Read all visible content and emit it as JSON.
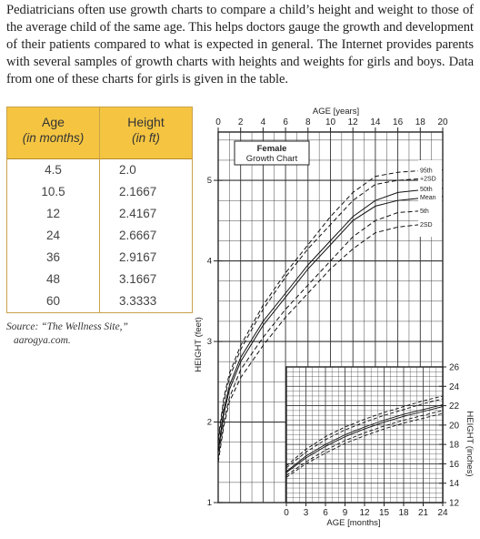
{
  "intro_text": "Pediatricians often use growth charts to compare a child’s height and weight to those of the average child of the same age. This helps doctors gauge the growth and development of their patients compared to what is expected in general. The Internet provides parents with several samples of growth charts with heights and weights for girls and boys. Data from one of these charts for girls is given in the table.",
  "table": {
    "col1_header": "Age",
    "col1_sub": "(in months)",
    "col2_header": "Height",
    "col2_sub": "(in ft)",
    "rows": [
      {
        "age": "4.5",
        "height": "2.0"
      },
      {
        "age": "10.5",
        "height": "2.1667"
      },
      {
        "age": "12",
        "height": "2.4167"
      },
      {
        "age": "24",
        "height": "2.6667"
      },
      {
        "age": "36",
        "height": "2.9167"
      },
      {
        "age": "48",
        "height": "3.1667"
      },
      {
        "age": "60",
        "height": "3.3333"
      }
    ]
  },
  "source_line1": "Source: “The Wellness Site,”",
  "source_line2": "aarogya.com.",
  "chart_data": {
    "type": "line",
    "title": "Female Growth Chart",
    "x_top_label": "AGE [years]",
    "x_top_ticks": [
      "0",
      "2",
      "4",
      "6",
      "8",
      "10",
      "12",
      "14",
      "16",
      "18",
      "20"
    ],
    "x_top_range": [
      0,
      20
    ],
    "y_left_label": "HEIGHT (feet)",
    "y_left_ticks": [
      "1",
      "2",
      "3",
      "4",
      "5"
    ],
    "y_left_range": [
      1,
      5.6
    ],
    "percentile_labels": [
      "95th",
      "+2SD",
      "50th",
      "Mean",
      "5th",
      "2SD"
    ],
    "series": [
      {
        "name": "95th",
        "dashed": true,
        "x": [
          0,
          0.5,
          1,
          2,
          4,
          6,
          8,
          10,
          12,
          14,
          16,
          18,
          20
        ],
        "y": [
          1.8,
          2.3,
          2.6,
          2.95,
          3.45,
          3.85,
          4.2,
          4.55,
          4.85,
          5.05,
          5.1,
          5.12,
          5.13
        ]
      },
      {
        "name": "+2SD",
        "dashed": true,
        "x": [
          0,
          0.5,
          1,
          2,
          4,
          6,
          8,
          10,
          12,
          14,
          16,
          18,
          20
        ],
        "y": [
          1.75,
          2.25,
          2.55,
          2.9,
          3.4,
          3.8,
          4.15,
          4.45,
          4.75,
          4.95,
          5.0,
          5.02,
          5.03
        ]
      },
      {
        "name": "50th",
        "dashed": false,
        "x": [
          0,
          0.5,
          1,
          2,
          4,
          6,
          8,
          10,
          12,
          14,
          16,
          18,
          20
        ],
        "y": [
          1.65,
          2.15,
          2.45,
          2.8,
          3.25,
          3.6,
          3.95,
          4.25,
          4.55,
          4.75,
          4.85,
          4.88,
          4.9
        ]
      },
      {
        "name": "Mean",
        "dashed": false,
        "x": [
          0,
          0.5,
          1,
          2,
          4,
          6,
          8,
          10,
          12,
          14,
          16,
          18,
          20
        ],
        "y": [
          1.62,
          2.1,
          2.4,
          2.75,
          3.2,
          3.55,
          3.9,
          4.2,
          4.5,
          4.68,
          4.75,
          4.78,
          4.8
        ]
      },
      {
        "name": "5th",
        "dashed": true,
        "x": [
          0,
          0.5,
          1,
          2,
          4,
          6,
          8,
          10,
          12,
          14,
          16,
          18,
          20
        ],
        "y": [
          1.55,
          2.0,
          2.3,
          2.65,
          3.05,
          3.4,
          3.7,
          4.0,
          4.3,
          4.5,
          4.6,
          4.62,
          4.63
        ]
      },
      {
        "name": "2SD",
        "dashed": true,
        "x": [
          0,
          0.5,
          1,
          2,
          4,
          6,
          8,
          10,
          12,
          14,
          16,
          18,
          20
        ],
        "y": [
          1.5,
          1.95,
          2.25,
          2.55,
          2.95,
          3.3,
          3.6,
          3.9,
          4.15,
          4.35,
          4.42,
          4.45,
          4.46
        ]
      }
    ],
    "inset": {
      "x_label": "AGE [months]",
      "x_ticks": [
        "0",
        "3",
        "6",
        "9",
        "12",
        "15",
        "18",
        "21",
        "24"
      ],
      "x_range": [
        0,
        24
      ],
      "y_label": "HEIGHT (inches)",
      "y_ticks": [
        "12",
        "14",
        "16",
        "18",
        "20",
        "22",
        "24",
        "26"
      ],
      "y_range": [
        12,
        26
      ],
      "series": [
        {
          "name": "95th",
          "dashed": true,
          "x": [
            0,
            3,
            6,
            9,
            12,
            15,
            18,
            21,
            24
          ],
          "y": [
            15.8,
            17.5,
            18.8,
            19.8,
            20.6,
            21.3,
            21.9,
            22.5,
            23.0
          ]
        },
        {
          "name": "+2SD",
          "dashed": true,
          "x": [
            0,
            3,
            6,
            9,
            12,
            15,
            18,
            21,
            24
          ],
          "y": [
            15.6,
            17.2,
            18.5,
            19.5,
            20.3,
            21.0,
            21.6,
            22.2,
            22.7
          ]
        },
        {
          "name": "50th",
          "dashed": false,
          "x": [
            0,
            3,
            6,
            9,
            12,
            15,
            18,
            21,
            24
          ],
          "y": [
            15.2,
            16.8,
            18.0,
            19.0,
            19.8,
            20.5,
            21.1,
            21.6,
            22.1
          ]
        },
        {
          "name": "Mean",
          "dashed": false,
          "x": [
            0,
            3,
            6,
            9,
            12,
            15,
            18,
            21,
            24
          ],
          "y": [
            15.1,
            16.6,
            17.8,
            18.8,
            19.6,
            20.3,
            20.9,
            21.4,
            21.9
          ]
        },
        {
          "name": "5th",
          "dashed": true,
          "x": [
            0,
            3,
            6,
            9,
            12,
            15,
            18,
            21,
            24
          ],
          "y": [
            14.8,
            16.2,
            17.4,
            18.4,
            19.2,
            19.9,
            20.5,
            21.0,
            21.5
          ]
        },
        {
          "name": "2SD",
          "dashed": true,
          "x": [
            0,
            3,
            6,
            9,
            12,
            15,
            18,
            21,
            24
          ],
          "y": [
            14.6,
            16.0,
            17.1,
            18.1,
            18.9,
            19.6,
            20.2,
            20.7,
            21.2
          ]
        }
      ]
    }
  }
}
